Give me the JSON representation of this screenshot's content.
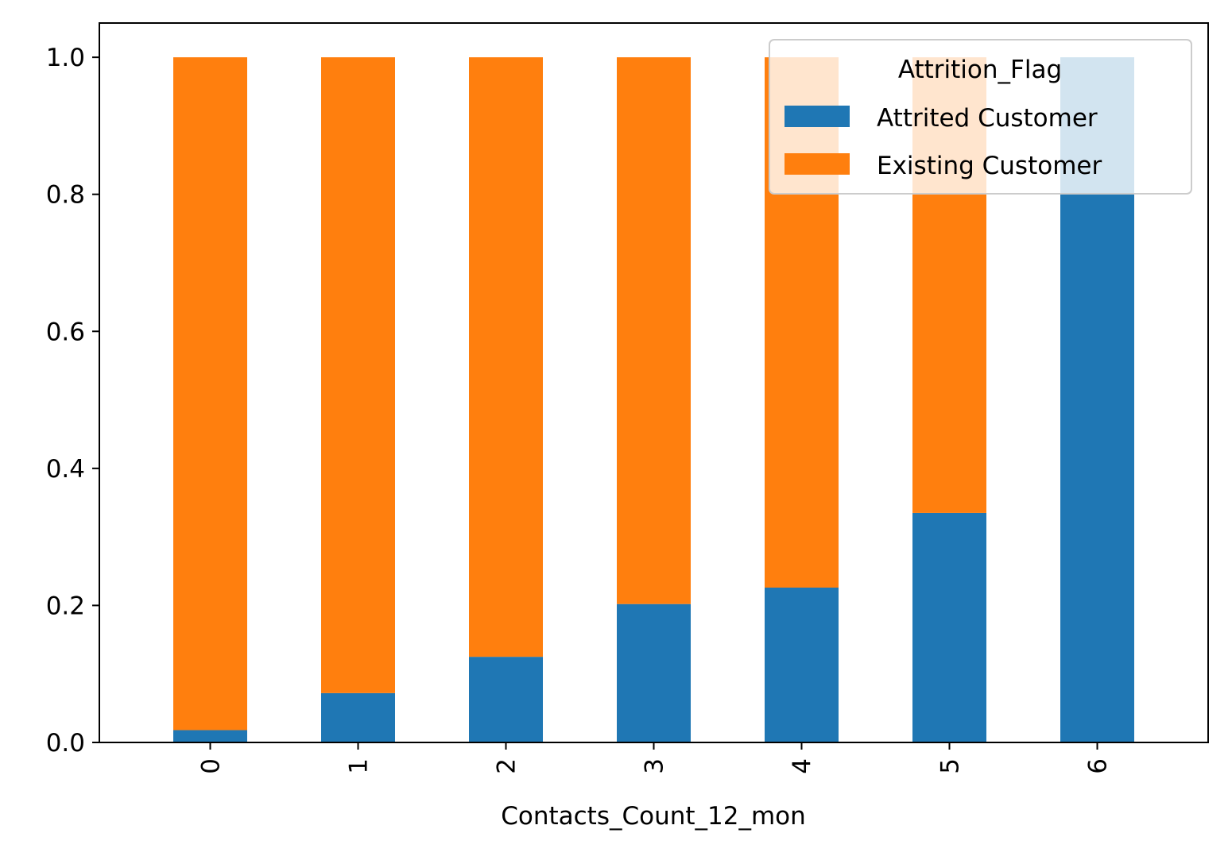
{
  "chart_data": {
    "type": "bar",
    "stacked": true,
    "categories": [
      "0",
      "1",
      "2",
      "3",
      "4",
      "5",
      "6"
    ],
    "series": [
      {
        "name": "Attrited Customer",
        "color": "#1f77b4",
        "values": [
          0.018,
          0.072,
          0.125,
          0.202,
          0.226,
          0.335,
          1.0
        ]
      },
      {
        "name": "Existing Customer",
        "color": "#ff7f0e",
        "values": [
          0.982,
          0.928,
          0.875,
          0.798,
          0.774,
          0.665,
          0.0
        ]
      }
    ],
    "title": "",
    "xlabel": "Contacts_Count_12_mon",
    "ylabel": "",
    "ylim": [
      0,
      1.05
    ],
    "yticks": [
      "0.0",
      "0.2",
      "0.4",
      "0.6",
      "0.8",
      "1.0"
    ],
    "grid": false,
    "legend": {
      "title": "Attrition_Flag",
      "placement": "top-right"
    }
  }
}
